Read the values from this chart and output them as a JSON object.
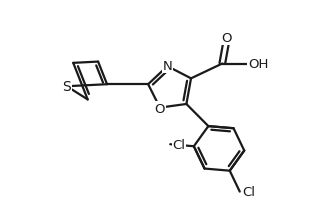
{
  "bg_color": "#ffffff",
  "line_color": "#1a1a1a",
  "line_width": 1.6,
  "font_size": 9.5,
  "xlim": [
    0,
    10
  ],
  "ylim": [
    0,
    6.3
  ]
}
